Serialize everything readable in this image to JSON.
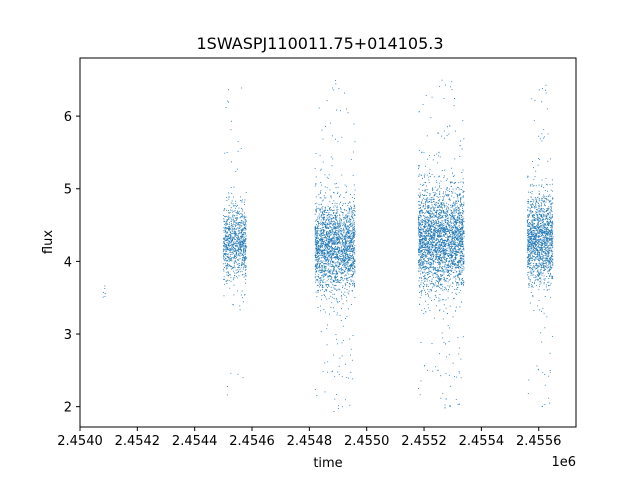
{
  "chart_data": {
    "type": "scatter",
    "title": "1SWASPJ110011.75+014105.3",
    "xlabel": "time",
    "ylabel": "flux",
    "x_offset_label": "1e6",
    "x_tick_values": [
      2.454,
      2.4542,
      2.4544,
      2.4546,
      2.4548,
      2.455,
      2.4552,
      2.4554,
      2.4556
    ],
    "x_tick_labels": [
      "2.4540",
      "2.4542",
      "2.4544",
      "2.4546",
      "2.4548",
      "2.4550",
      "2.4552",
      "2.4554",
      "2.4556"
    ],
    "y_tick_values": [
      2,
      3,
      4,
      5,
      6
    ],
    "y_tick_labels": [
      "2",
      "3",
      "4",
      "5",
      "6"
    ],
    "xlim": [
      2.454,
      2.45573
    ],
    "ylim": [
      1.72,
      6.8
    ],
    "grid": false,
    "marker_color": "#1f77b4",
    "clusters": [
      {
        "x_start": 2.45408,
        "x_end": 2.45409,
        "center": 3.55,
        "spread": 0.08,
        "ymin": 3.4,
        "ymax": 3.7,
        "n": 6
      },
      {
        "x_start": 2.4545,
        "x_end": 2.45458,
        "center": 4.25,
        "spread": 0.25,
        "ymin": 2.0,
        "ymax": 6.5,
        "n": 900
      },
      {
        "x_start": 2.45482,
        "x_end": 2.45496,
        "center": 4.2,
        "spread": 0.3,
        "ymin": 1.92,
        "ymax": 6.5,
        "n": 2200
      },
      {
        "x_start": 2.45518,
        "x_end": 2.45534,
        "center": 4.3,
        "spread": 0.35,
        "ymin": 1.93,
        "ymax": 6.55,
        "n": 3000
      },
      {
        "x_start": 2.45556,
        "x_end": 2.45565,
        "center": 4.3,
        "spread": 0.3,
        "ymin": 1.95,
        "ymax": 6.5,
        "n": 1500
      }
    ]
  }
}
